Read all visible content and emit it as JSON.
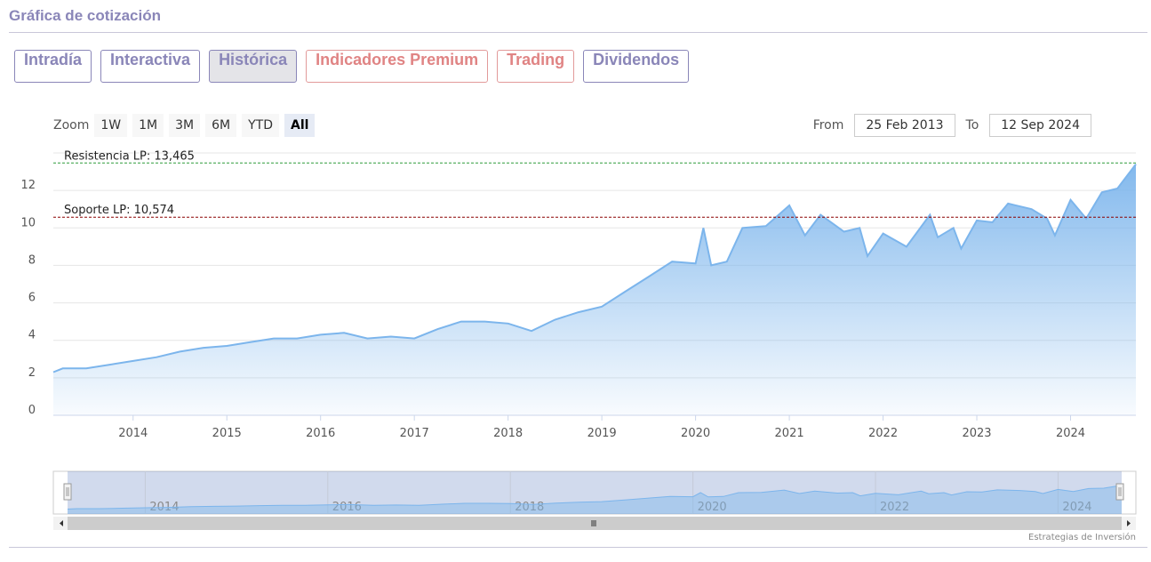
{
  "header": {
    "title": "Gráfica de cotización"
  },
  "tabs": [
    {
      "label": "Intradía",
      "style": "normal"
    },
    {
      "label": "Interactiva",
      "style": "normal"
    },
    {
      "label": "Histórica",
      "style": "active"
    },
    {
      "label": "Indicadores Premium",
      "style": "red"
    },
    {
      "label": "Trading",
      "style": "red"
    },
    {
      "label": "Dividendos",
      "style": "normal"
    }
  ],
  "zoom": {
    "label": "Zoom",
    "buttons": [
      "1W",
      "1M",
      "3M",
      "6M",
      "YTD",
      "All"
    ],
    "selected": "All"
  },
  "range": {
    "from_label": "From",
    "from": "25 Feb 2013",
    "to_label": "To",
    "to": "12 Sep 2024"
  },
  "credit": "Estrategias de Inversión",
  "colors": {
    "series": "#7cb5ec",
    "resistance": "#2e9b3a",
    "support": "#8b0000",
    "accent": "#8a86b8"
  },
  "chart_data": {
    "type": "area",
    "ylim": [
      0,
      14
    ],
    "yticks": [
      "0",
      "2",
      "4",
      "6",
      "8",
      "10",
      "12"
    ],
    "xticks": [
      "2014",
      "2015",
      "2016",
      "2017",
      "2018",
      "2019",
      "2020",
      "2021",
      "2022",
      "2023",
      "2024"
    ],
    "navigator_ticks": [
      "2014",
      "2016",
      "2018",
      "2020",
      "2022",
      "2024"
    ],
    "grid": true,
    "lines": [
      {
        "label": "Resistencia LP: 13,465",
        "value": 13.465,
        "color": "#2e9b3a"
      },
      {
        "label": "Soporte LP: 10,574",
        "value": 10.574,
        "color": "#8b0000"
      }
    ],
    "series": [
      {
        "x": [
          "2013-02-25",
          "2013-04",
          "2013-07",
          "2013-10",
          "2014-01",
          "2014-04",
          "2014-07",
          "2014-10",
          "2015-01",
          "2015-04",
          "2015-07",
          "2015-10",
          "2016-01",
          "2016-04",
          "2016-07",
          "2016-10",
          "2017-01",
          "2017-04",
          "2017-07",
          "2017-10",
          "2018-01",
          "2018-04",
          "2018-07",
          "2018-10",
          "2019-01",
          "2019-04",
          "2019-07",
          "2019-10",
          "2020-01",
          "2020-02",
          "2020-03",
          "2020-05",
          "2020-07",
          "2020-10",
          "2021-01",
          "2021-03",
          "2021-05",
          "2021-08",
          "2021-10",
          "2021-11",
          "2022-01",
          "2022-04",
          "2022-07",
          "2022-08",
          "2022-10",
          "2022-11",
          "2023-01",
          "2023-03",
          "2023-05",
          "2023-08",
          "2023-10",
          "2023-11",
          "2024-01",
          "2024-03",
          "2024-05",
          "2024-07",
          "2024-09-12"
        ],
        "values": [
          2.3,
          2.5,
          2.5,
          2.7,
          2.9,
          3.1,
          3.4,
          3.6,
          3.7,
          3.9,
          4.1,
          4.1,
          4.3,
          4.4,
          4.1,
          4.2,
          4.1,
          4.6,
          5.0,
          5.0,
          4.9,
          4.5,
          5.1,
          5.5,
          5.8,
          6.6,
          7.4,
          8.2,
          8.1,
          10.0,
          8.0,
          8.2,
          10.0,
          10.1,
          11.2,
          9.6,
          10.7,
          9.8,
          10.0,
          8.5,
          9.7,
          9.0,
          10.7,
          9.5,
          10.0,
          8.9,
          10.4,
          10.3,
          11.3,
          11.0,
          10.5,
          9.6,
          11.5,
          10.5,
          11.9,
          12.1,
          13.4
        ]
      }
    ]
  }
}
